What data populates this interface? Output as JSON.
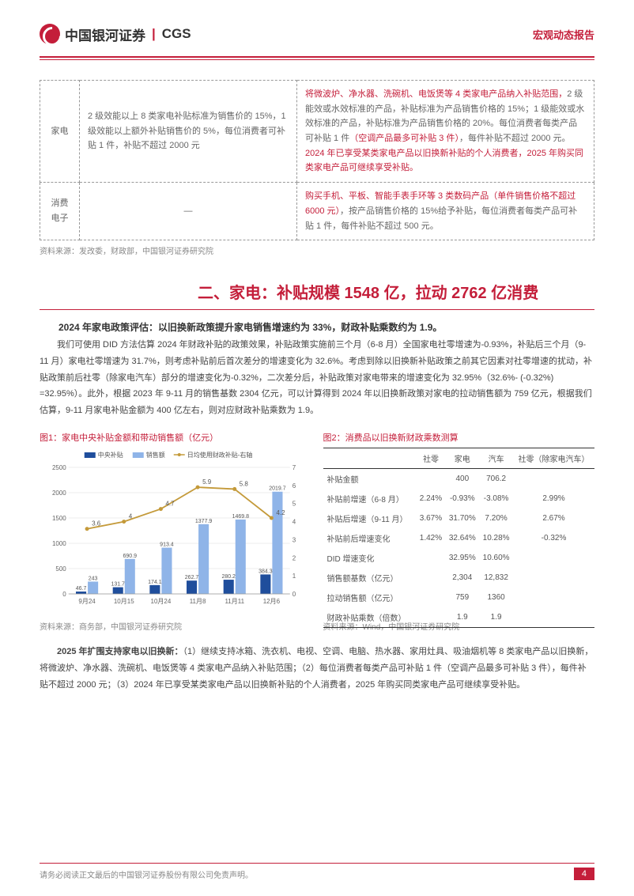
{
  "header": {
    "logo_cn": "中国银河证券",
    "logo_en": "CGS",
    "right": "宏观动态报告"
  },
  "policy_table": {
    "rows": [
      {
        "cat": "家电",
        "col2": "2 级效能以上 8 类家电补贴标准为销售价的 15%，1 级效能以上额外补贴销售价的 5%，每位消费者可补贴 1 件，补贴不超过 2000 元",
        "col3_red1": "将微波炉、净水器、洗碗机、电饭煲等 4 类家电产品纳入补贴范围，",
        "col3_black1": "2 级能效或水效标准的产品，补贴标准为产品销售价格的 15%；1 级能效或水效标准的产品，补贴标准为产品销售价格的 20%。每位消费者每类产品可补贴 1 件",
        "col3_red2": "（空调产品最多可补贴 3 件）",
        "col3_black2": "，每件补贴不超过 2000 元。",
        "col3_red3": "2024 年已享受某类家电产品以旧换新补贴的个人消费者，2025 年购买同类家电产品可继续享受补贴。"
      },
      {
        "cat": "消费电子",
        "col2": "—",
        "col3_red1": "购买手机、平板、智能手表手环等 3 类数码产品（单件销售价格不超过 6000 元）",
        "col3_black1": "，按产品销售价格的 15%给予补贴，每位消费者每类产品可补贴 1 件，每件补贴不超过 500 元。"
      }
    ],
    "source": "资料来源：发改委，财政部，中国银河证券研究院"
  },
  "section2": {
    "title": "二、家电：补贴规模 1548 亿，拉动 2762 亿消费",
    "bold": "2024 年家电政策评估：以旧换新政策提升家电销售增速约为 33%，财政补贴乘数约为 1.9。",
    "body": "我们可使用 DID 方法估算 2024 年财政补贴的政策效果，补贴政策实施前三个月（6-8 月）全国家电社零增速为-0.93%，补贴后三个月（9-11 月）家电社零增速为 31.7%，则考虑补贴前后首次差分的增速变化为 32.6%。考虑到除以旧换新补贴政策之前其它因素对社零增速的扰动，补贴政策前后社零（除家电汽车）部分的增速变化为-0.32%，二次差分后，补贴政策对家电带来的增速变化为 32.95%（32.6%- (-0.32%) =32.95%）。此外，根据 2023 年 9-11 月的销售基数 2304 亿元，可以计算得到 2024 年以旧换新政策对家电的拉动销售额为 759 亿元，根据我们估算，9-11 月家电补贴金额为 400 亿左右，则对应财政补贴乘数为 1.9。"
  },
  "chart1": {
    "title": "图1：家电中央补贴金额和带动销售额（亿元）",
    "legend": [
      "中央补贴",
      "销售额",
      "日均使用财政补贴-右轴"
    ],
    "colors": {
      "central": "#1f4e9c",
      "sales": "#8fb4e8",
      "line": "#c49a3a",
      "grid": "#d9d9d9",
      "axis": "#666"
    },
    "categories": [
      "9月24",
      "10月15",
      "10月24",
      "11月8",
      "11月11",
      "12月6"
    ],
    "central": [
      46.7,
      131.7,
      174.1,
      262.7,
      280.2,
      384.3
    ],
    "sales": [
      243.0,
      690.9,
      913.4,
      1377.9,
      1469.8,
      2019.7
    ],
    "line": [
      3.6,
      4.0,
      4.7,
      5.9,
      5.8,
      4.2
    ],
    "y1_max": 2500,
    "y1_step": 500,
    "y2_max": 7,
    "y2_step": 1,
    "source": "资料来源：商务部，中国银河证券研究院"
  },
  "chart2": {
    "title": "图2：消费品以旧换新财政乘数测算",
    "headers": [
      "",
      "社零",
      "家电",
      "汽车",
      "社零（除家电汽车）"
    ],
    "rows": [
      {
        "label": "补贴金额",
        "vals": [
          "",
          "400",
          "706.2",
          ""
        ]
      },
      {
        "label": "补贴前增速（6-8 月）",
        "vals": [
          "2.24%",
          "-0.93%",
          "-3.08%",
          "2.99%"
        ]
      },
      {
        "label": "补贴后增速（9-11 月）",
        "vals": [
          "3.67%",
          "31.70%",
          "7.20%",
          "2.67%"
        ]
      },
      {
        "label": "补贴前后增速变化",
        "vals": [
          "1.42%",
          "32.64%",
          "10.28%",
          "-0.32%"
        ]
      },
      {
        "label": "DID 增速变化",
        "vals": [
          "",
          "32.95%",
          "10.60%",
          ""
        ]
      },
      {
        "label": "销售额基数（亿元）",
        "vals": [
          "",
          "2,304",
          "12,832",
          ""
        ]
      },
      {
        "label": "拉动销售额（亿元）",
        "vals": [
          "",
          "759",
          "1360",
          ""
        ]
      },
      {
        "label": "财政补贴乘数（倍数）",
        "vals": [
          "",
          "1.9",
          "1.9",
          ""
        ]
      }
    ],
    "source": "资料来源：Wind，中国银河证券研究院"
  },
  "section3": {
    "bold": "2025 年扩围支持家电以旧换新：",
    "body": "（1）继续支持冰箱、洗衣机、电视、空调、电脑、热水器、家用灶具、吸油烟机等 8 类家电产品以旧换新，将微波炉、净水器、洗碗机、电饭煲等 4 类家电产品纳入补贴范围；（2）每位消费者每类产品可补贴 1 件（空调产品最多可补贴 3 件），每件补贴不超过 2000 元；（3）2024 年已享受某类家电产品以旧换新补贴的个人消费者，2025 年购买同类家电产品可继续享受补贴。"
  },
  "footer": {
    "text": "请务必阅读正文最后的中国银河证券股份有限公司免责声明。",
    "page": "4"
  }
}
